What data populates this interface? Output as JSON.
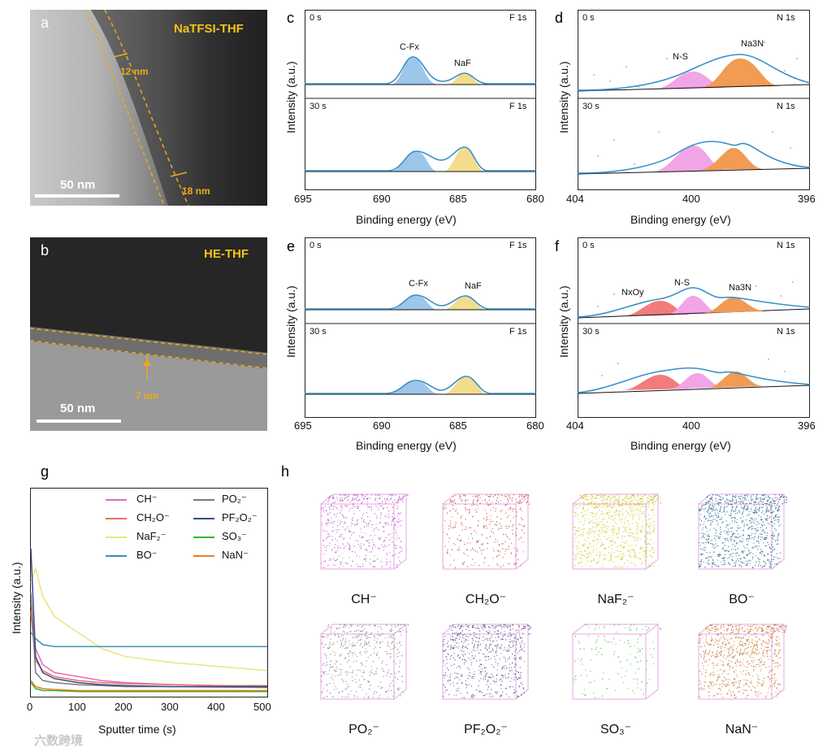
{
  "panels": {
    "a": {
      "label": "a",
      "title": "NaTFSI-THF",
      "meas1": "12 nm",
      "meas2": "18 nm",
      "scale": "50 nm"
    },
    "b": {
      "label": "b",
      "title": "HE-THF",
      "meas1": "7 nm",
      "scale": "50 nm"
    },
    "c": {
      "label": "c",
      "top_time": "0 s",
      "bottom_time": "30 s",
      "element": "F 1s",
      "peak1": "C-Fx",
      "peak2": "NaF"
    },
    "d": {
      "label": "d",
      "top_time": "0 s",
      "bottom_time": "30 s",
      "element": "N 1s",
      "peak1": "N-S",
      "peak2": "Na3N"
    },
    "e": {
      "label": "e",
      "top_time": "0 s",
      "bottom_time": "30 s",
      "element": "F 1s",
      "peak1": "C-Fx",
      "peak2": "NaF"
    },
    "f": {
      "label": "f",
      "top_time": "0 s",
      "bottom_time": "30 s",
      "element": "N 1s",
      "peak0": "NxOy",
      "peak1": "N-S",
      "peak2": "Na3N"
    },
    "g": {
      "label": "g"
    },
    "h": {
      "label": "h"
    }
  },
  "xps_axes": {
    "ylabel": "Intensity (a.u.)",
    "xlabel": "Binding energy (eV)",
    "f_ticks": [
      "695",
      "690",
      "685",
      "680"
    ],
    "n_ticks": [
      "404",
      "400",
      "396"
    ]
  },
  "chart_data": {
    "type": "line",
    "title": "",
    "xlabel": "Sputter time (s)",
    "ylabel": "Intensity (a.u.)",
    "xlim": [
      0,
      500
    ],
    "x_ticks": [
      "0",
      "100",
      "200",
      "300",
      "400",
      "500"
    ],
    "legend_position": "top-right",
    "series": [
      {
        "name": "CH⁻",
        "color": "#e26bc4",
        "x": [
          0,
          10,
          25,
          50,
          100,
          150,
          200,
          300,
          400,
          500
        ],
        "values": [
          0.45,
          0.22,
          0.14,
          0.1,
          0.08,
          0.06,
          0.05,
          0.04,
          0.035,
          0.03
        ]
      },
      {
        "name": "CH₂O⁻",
        "color": "#e8735e",
        "x": [
          0,
          10,
          25,
          50,
          100,
          150,
          200,
          300,
          400,
          500
        ],
        "values": [
          0.4,
          0.16,
          0.11,
          0.08,
          0.06,
          0.05,
          0.045,
          0.04,
          0.035,
          0.035
        ]
      },
      {
        "name": "NaF₂⁻",
        "color": "#e9e67a",
        "x": [
          0,
          10,
          25,
          50,
          100,
          150,
          200,
          300,
          400,
          500
        ],
        "values": [
          0.55,
          0.62,
          0.48,
          0.38,
          0.3,
          0.22,
          0.18,
          0.15,
          0.13,
          0.11
        ]
      },
      {
        "name": "BO⁻",
        "color": "#3a8fb7",
        "x": [
          0,
          10,
          25,
          50,
          100,
          150,
          200,
          300,
          400,
          500
        ],
        "values": [
          0.3,
          0.27,
          0.24,
          0.23,
          0.23,
          0.23,
          0.23,
          0.23,
          0.23,
          0.23
        ]
      },
      {
        "name": "PO₂⁻",
        "color": "#7a7a7a",
        "x": [
          0,
          10,
          25,
          50,
          100,
          150,
          200,
          300,
          400,
          500
        ],
        "values": [
          0.5,
          0.1,
          0.06,
          0.05,
          0.04,
          0.035,
          0.03,
          0.03,
          0.028,
          0.025
        ]
      },
      {
        "name": "PF₂O₂⁻",
        "color": "#3b4a8c",
        "x": [
          0,
          10,
          25,
          50,
          100,
          150,
          200,
          300,
          400,
          500
        ],
        "values": [
          0.72,
          0.18,
          0.1,
          0.07,
          0.05,
          0.04,
          0.035,
          0.03,
          0.03,
          0.03
        ]
      },
      {
        "name": "SO₃⁻",
        "color": "#2fb52f",
        "x": [
          0,
          10,
          25,
          50,
          100,
          150,
          200,
          300,
          400,
          500
        ],
        "values": [
          0.05,
          0.02,
          0.01,
          0.01,
          0.005,
          0.005,
          0.005,
          0.005,
          0.005,
          0.005
        ]
      },
      {
        "name": "NaN⁻",
        "color": "#ef7b22",
        "x": [
          0,
          10,
          25,
          50,
          100,
          150,
          200,
          300,
          400,
          500
        ],
        "values": [
          0.06,
          0.03,
          0.02,
          0.015,
          0.01,
          0.01,
          0.01,
          0.01,
          0.01,
          0.01
        ]
      }
    ]
  },
  "cubes": [
    {
      "name": "CH⁻",
      "color": "#b24bc6"
    },
    {
      "name": "CH₂O⁻",
      "color": "#c23a3a"
    },
    {
      "name": "NaF₂⁻",
      "color": "#c8c81f"
    },
    {
      "name": "BO⁻",
      "color": "#1a5f88"
    },
    {
      "name": "PO₂⁻",
      "color": "#777777"
    },
    {
      "name": "PF₂O₂⁻",
      "color": "#4a4a86"
    },
    {
      "name": "SO₃⁻",
      "color": "#3bb53b"
    },
    {
      "name": "NaN⁻",
      "color": "#c46a1e"
    }
  ],
  "watermark": "六数跨境"
}
